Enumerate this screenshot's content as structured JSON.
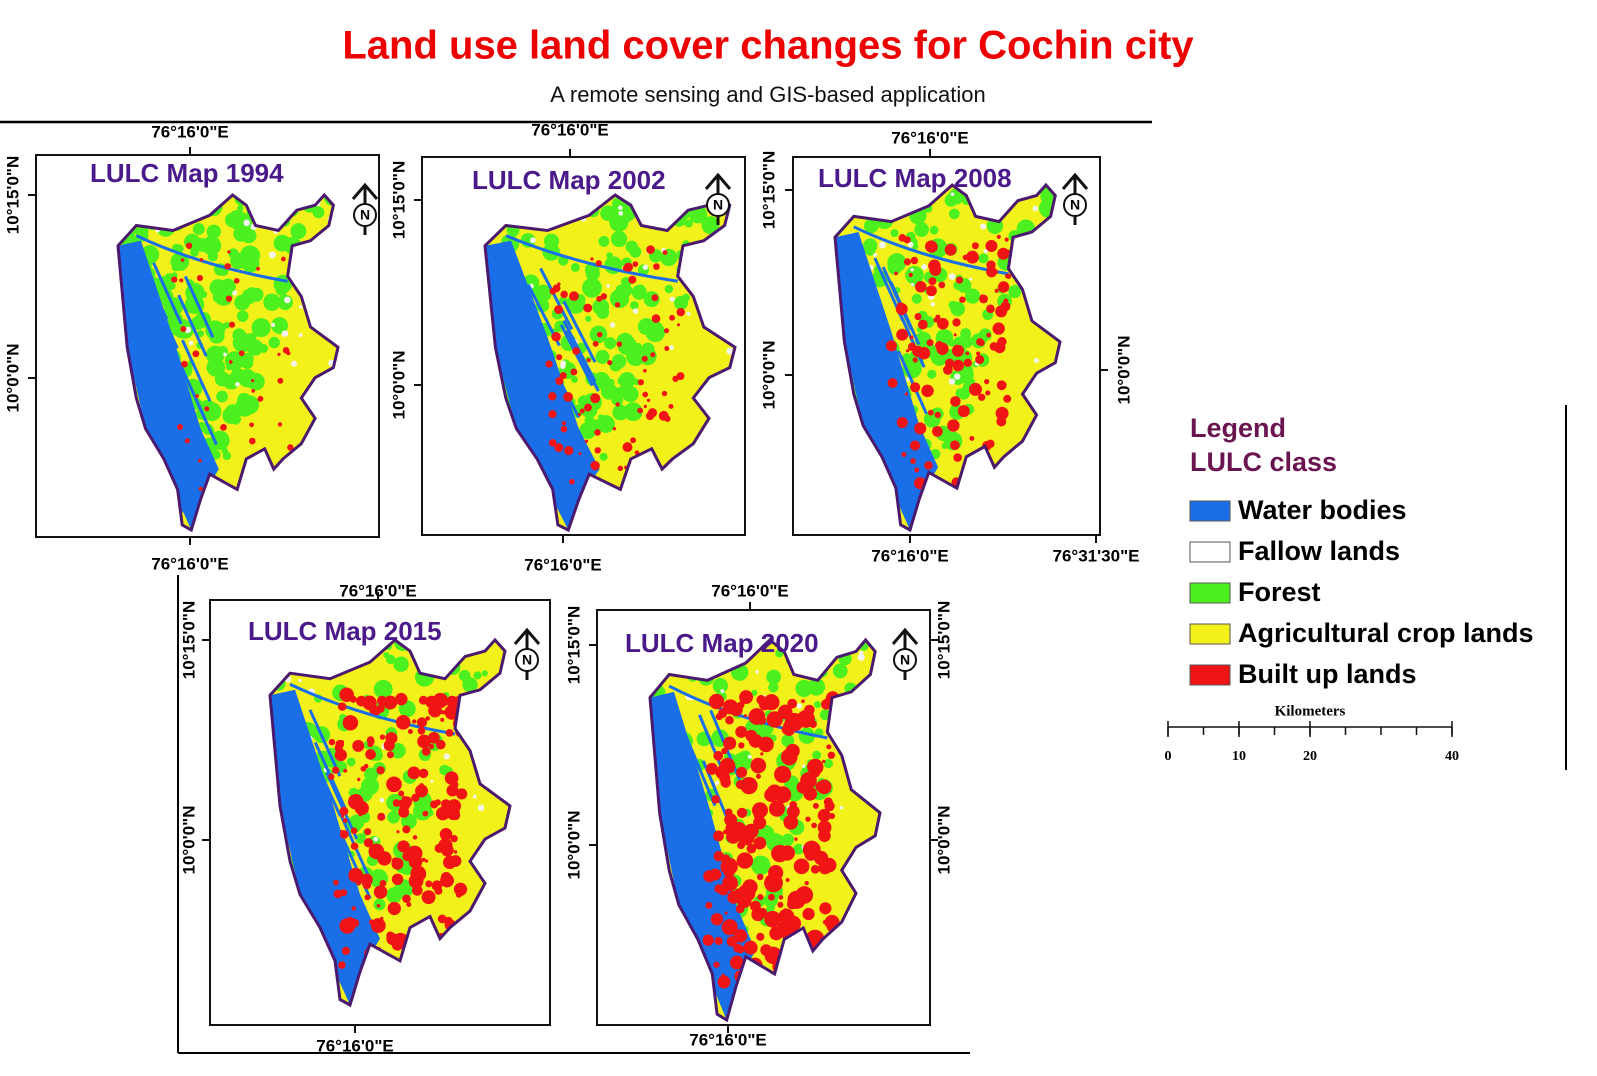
{
  "header": {
    "title": "Land use land cover changes for Cochin city",
    "subtitle": "A remote sensing and GIS-based application"
  },
  "maps": [
    {
      "title": "LULC Map 1994",
      "top_labels": [
        "76°16'0\"E"
      ],
      "bottom_labels": [
        "76°16'0\"E"
      ],
      "left_labels": [
        "10°15'0\"N",
        "10°0'0\"N"
      ]
    },
    {
      "title": "LULC Map 2002",
      "top_labels": [
        "76°16'0\"E"
      ],
      "bottom_labels": [
        "76°16'0\"E"
      ],
      "left_labels": [
        "10°15'0\"N",
        "10°0'0\"N"
      ]
    },
    {
      "title": "LULC Map 2008",
      "top_labels": [
        "76°16'0\"E"
      ],
      "bottom_labels": [
        "76°16'0\"E",
        "76°31'30\"E"
      ],
      "left_labels": [
        "10°15'0\"N",
        "10°0'0\"N"
      ],
      "right_labels": [
        "10°0'0\"N"
      ]
    },
    {
      "title": "LULC Map 2015",
      "top_labels": [
        "76°16'0\"E"
      ],
      "bottom_labels": [
        "76°16'0\"E"
      ],
      "left_labels": [
        "10°15'0\"N",
        "10°0'0\"N"
      ]
    },
    {
      "title": "LULC Map 2020",
      "top_labels": [
        "76°16'0\"E"
      ],
      "bottom_labels": [
        "76°16'0\"E"
      ],
      "left_labels": [
        "10°15'0\"N",
        "10°0'0\"N"
      ],
      "right_labels": [
        "10°15'0\"N",
        "10°0'0\"N"
      ]
    }
  ],
  "north_symbol": "N",
  "legend": {
    "title": "Legend",
    "subtitle": "LULC class",
    "items": [
      {
        "label": "Water bodies",
        "color": "#1a6ee8"
      },
      {
        "label": "Fallow lands",
        "color": "#ffffff"
      },
      {
        "label": "Forest",
        "color": "#4cf01e"
      },
      {
        "label": "Agricultural crop lands",
        "color": "#f2f21a"
      },
      {
        "label": "Built up lands",
        "color": "#f01414"
      }
    ]
  },
  "scale": {
    "label": "Kilometers",
    "ticks": [
      0,
      10,
      20,
      40
    ]
  }
}
